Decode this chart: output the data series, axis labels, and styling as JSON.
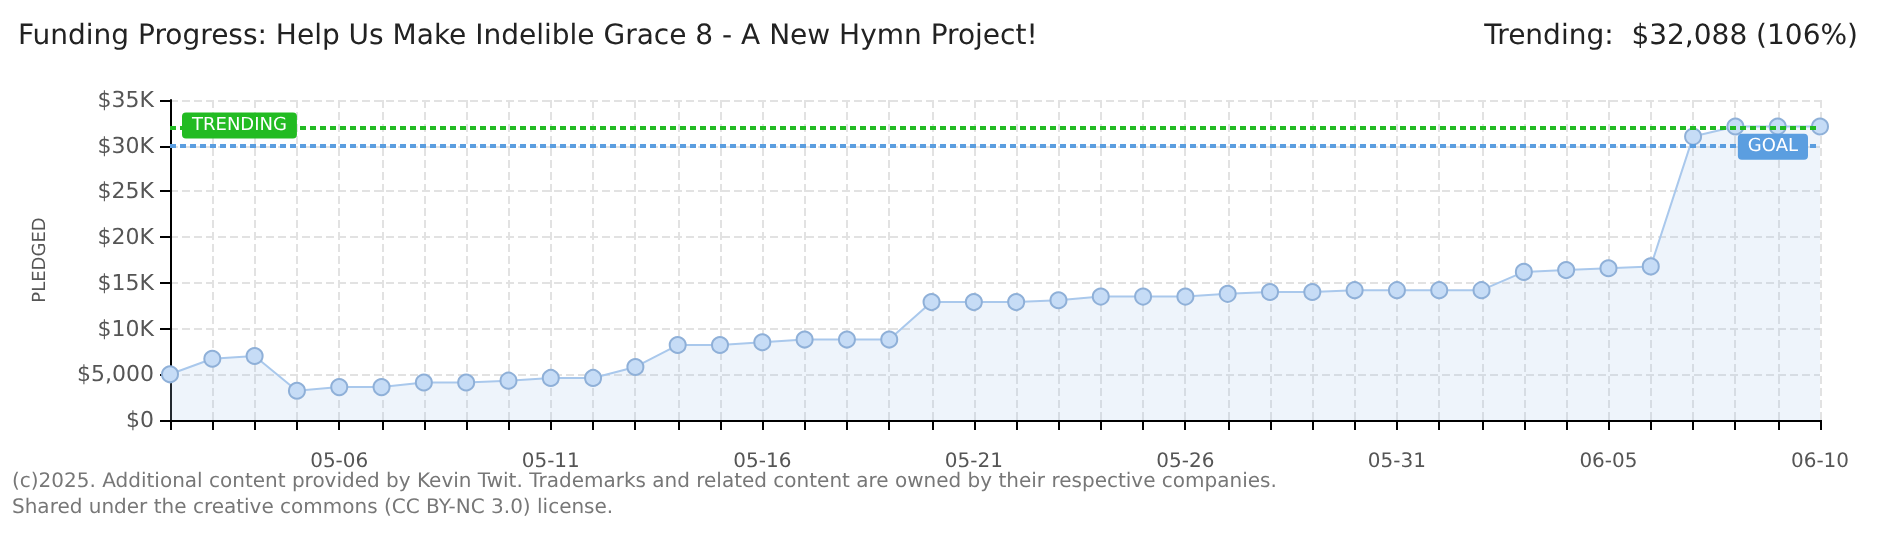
{
  "chart_data": {
    "type": "area",
    "title": "Funding Progress: Help Us Make Indelible Grace 8 - A New Hymn Project!",
    "subtitle": "Trending:  $32,088 (106%)",
    "ylabel": "PLEDGED",
    "categories": [
      null,
      null,
      null,
      null,
      "05-06",
      null,
      null,
      null,
      null,
      "05-11",
      null,
      null,
      null,
      null,
      "05-16",
      null,
      null,
      null,
      null,
      "05-21",
      null,
      null,
      null,
      null,
      "05-26",
      null,
      null,
      null,
      null,
      "05-31",
      null,
      null,
      null,
      null,
      "06-05",
      null,
      null,
      null,
      null,
      "06-10"
    ],
    "series": [
      {
        "color": "#a9c8ec",
        "values": [
          5000,
          6700,
          7000,
          3200,
          3600,
          3600,
          4100,
          4100,
          4300,
          4600,
          4600,
          5800,
          8200,
          8200,
          8500,
          8800,
          8800,
          8800,
          12900,
          12900,
          12900,
          13100,
          13500,
          13500,
          13500,
          13800,
          14000,
          14000,
          14200,
          14200,
          14200,
          14200,
          16200,
          16400,
          16600,
          16800,
          31000,
          32100,
          32100,
          32100
        ]
      }
    ],
    "ylim": [
      0,
      35000
    ],
    "yticks": [
      {
        "value": 0,
        "label": "$0"
      },
      {
        "value": 5000,
        "label": "$5,000"
      },
      {
        "value": 10000,
        "label": "$10K"
      },
      {
        "value": 15000,
        "label": "$15K"
      },
      {
        "value": 20000,
        "label": "$20K"
      },
      {
        "value": 25000,
        "label": "$25K"
      },
      {
        "value": 30000,
        "label": "$30K"
      },
      {
        "value": 35000,
        "label": "$35K"
      }
    ],
    "ref_lines": [
      {
        "axis": "y",
        "value": 32088,
        "label": "TRENDING",
        "color": "#22bb22",
        "line_style": "dotted"
      },
      {
        "axis": "y",
        "value": 30000,
        "label": "GOAL",
        "color": "#5b9ee0",
        "line_style": "dotted"
      }
    ],
    "grid": true,
    "marker": "circle",
    "annotations": [
      "(c)2025. Additional content provided by Kevin Twit. Trademarks and related content are owned by their respective companies.",
      "Shared under the creative commons (CC BY-NC 3.0) license."
    ]
  }
}
